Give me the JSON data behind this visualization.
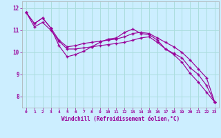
{
  "xlabel": "Windchill (Refroidissement éolien,°C)",
  "bg_color": "#cceeff",
  "line_color": "#990099",
  "grid_color": "#aadddd",
  "ylim": [
    7.5,
    12.3
  ],
  "xlim": [
    -0.5,
    23.5
  ],
  "yticks": [
    8,
    9,
    10,
    11,
    12
  ],
  "xticks": [
    0,
    1,
    2,
    3,
    4,
    5,
    6,
    7,
    8,
    9,
    10,
    11,
    12,
    13,
    14,
    15,
    16,
    17,
    18,
    19,
    20,
    21,
    22,
    23
  ],
  "s1": [
    11.8,
    11.3,
    11.55,
    11.1,
    10.3,
    9.8,
    9.9,
    10.05,
    10.25,
    10.45,
    10.6,
    10.65,
    10.9,
    11.05,
    10.85,
    10.8,
    10.55,
    10.15,
    9.95,
    9.75,
    9.3,
    9.0,
    8.5,
    7.75
  ],
  "s2": [
    11.8,
    11.3,
    11.55,
    11.1,
    10.55,
    10.25,
    10.3,
    10.4,
    10.45,
    10.5,
    10.55,
    10.6,
    10.7,
    10.85,
    10.9,
    10.85,
    10.65,
    10.45,
    10.25,
    10.0,
    9.65,
    9.25,
    8.85,
    7.75
  ],
  "s3": [
    11.8,
    11.15,
    11.35,
    11.0,
    10.5,
    10.15,
    10.15,
    10.2,
    10.25,
    10.3,
    10.35,
    10.4,
    10.45,
    10.55,
    10.65,
    10.7,
    10.45,
    10.15,
    9.9,
    9.55,
    9.05,
    8.65,
    8.2,
    7.75
  ]
}
